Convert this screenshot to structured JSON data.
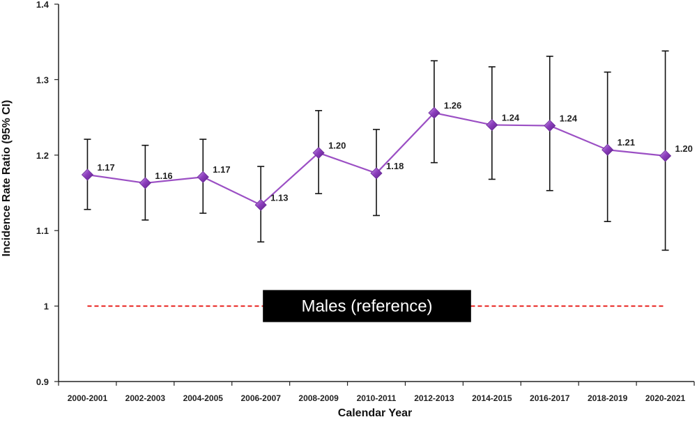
{
  "chart_data": {
    "type": "line",
    "xlabel": "Calendar Year",
    "ylabel": "Incidence Rate Ratio (95% CI)",
    "ylim": [
      0.9,
      1.4
    ],
    "yticks": [
      "0.9",
      "1",
      "1.1",
      "1.2",
      "1.3",
      "1.4"
    ],
    "grid": false,
    "categories": [
      "2000-2001",
      "2002-2003",
      "2004-2005",
      "2006-2007",
      "2008-2009",
      "2010-2011",
      "2012-2013",
      "2014-2015",
      "2016-2017",
      "2018-2019",
      "2020-2021"
    ],
    "series": [
      {
        "values": [
          1.174,
          1.163,
          1.171,
          1.134,
          1.203,
          1.176,
          1.256,
          1.24,
          1.239,
          1.207,
          1.199
        ],
        "labels": [
          "1.17",
          "1.16",
          "1.17",
          "1.13",
          "1.20",
          "1.18",
          "1.26",
          "1.24",
          "1.24",
          "1.21",
          "1.20"
        ],
        "ci_lower": [
          1.128,
          1.114,
          1.123,
          1.085,
          1.149,
          1.12,
          1.19,
          1.168,
          1.153,
          1.112,
          1.074
        ],
        "ci_upper": [
          1.221,
          1.213,
          1.221,
          1.185,
          1.259,
          1.234,
          1.325,
          1.317,
          1.331,
          1.31,
          1.338
        ],
        "color": "#9b4fc4",
        "marker": "diamond"
      }
    ],
    "reference_line": {
      "value": 1.0,
      "label": "Males (reference)",
      "color": "#e8201c",
      "style": "dashed"
    },
    "colors": {
      "line": "#9b4fc4",
      "marker_fill": "#8e3fbf",
      "errorbar": "#111111",
      "reference_box": "#000000"
    }
  }
}
